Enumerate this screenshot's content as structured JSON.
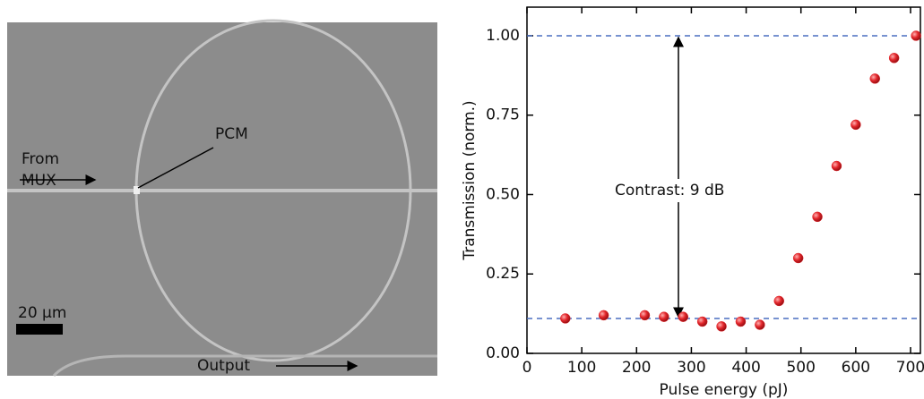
{
  "image_labels": [
    "From",
    "MUX",
    "PCM",
    "20 µm",
    "Output"
  ],
  "chart_data": {
    "type": "scatter",
    "xlabel": "Pulse energy (pJ)",
    "ylabel": "Transmission (norm.)",
    "annotation": "Contrast: 9 dB",
    "reference_lines": [
      1.0,
      0.11
    ],
    "color": "#e3262b",
    "xlim": [
      0,
      718
    ],
    "ylim": [
      0,
      1.09
    ],
    "xticks": [
      0,
      100,
      200,
      300,
      400,
      500,
      600,
      700
    ],
    "yticks": [
      {
        "value": 0,
        "label": "0.00"
      },
      {
        "value": 0.25,
        "label": "0.25"
      },
      {
        "value": 0.5,
        "label": "0.50"
      },
      {
        "value": 0.75,
        "label": "0.75"
      },
      {
        "value": 1,
        "label": "1.00"
      }
    ],
    "x": [
      70,
      140,
      215,
      250,
      285,
      320,
      355,
      390,
      425,
      460,
      495,
      530,
      565,
      600,
      635,
      670,
      710
    ],
    "values": [
      0.11,
      0.12,
      0.12,
      0.115,
      0.115,
      0.1,
      0.085,
      0.1,
      0.09,
      0.165,
      0.3,
      0.43,
      0.59,
      0.72,
      0.865,
      0.93,
      1.0
    ]
  }
}
